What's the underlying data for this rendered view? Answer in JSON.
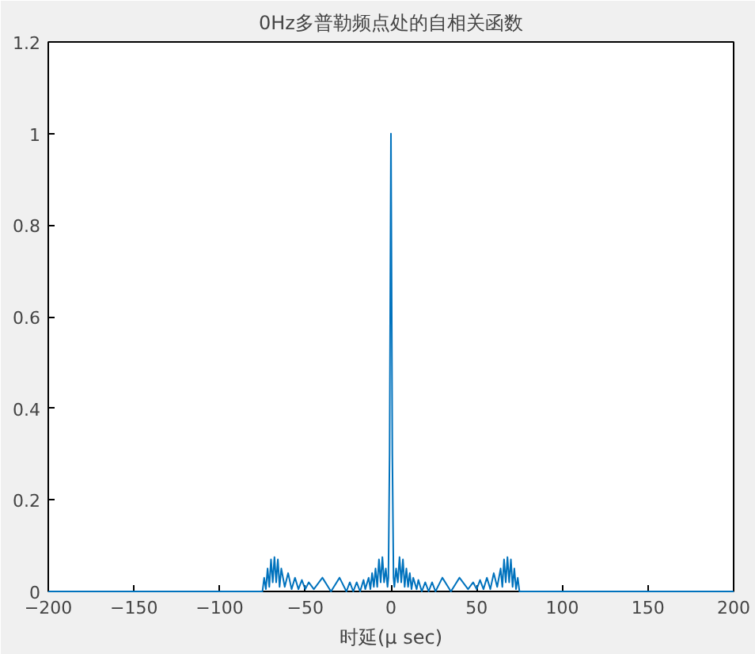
{
  "chart_data": {
    "type": "line",
    "title": "0Hz多普勒频点处的自相关函数",
    "xlabel": "时延(μ sec)",
    "x": [
      -200,
      -75,
      -74,
      -73,
      -72,
      -71,
      -70,
      -69,
      -68,
      -67,
      -66,
      -65,
      -64,
      -62,
      -60,
      -58,
      -56,
      -54,
      -52,
      -50,
      -48,
      -45,
      -40,
      -35,
      -30,
      -26,
      -24,
      -22,
      -20,
      -18,
      -16,
      -15,
      -13,
      -12,
      -11,
      -10,
      -9,
      -8,
      -7,
      -6,
      -5,
      -4,
      -3,
      -2,
      -1.5,
      -0.8,
      0,
      0.8,
      1.5,
      2,
      3,
      4,
      5,
      6,
      7,
      8,
      9,
      10,
      11,
      12,
      13,
      15,
      16,
      18,
      20,
      22,
      24,
      26,
      30,
      35,
      40,
      45,
      48,
      50,
      52,
      54,
      56,
      58,
      60,
      62,
      64,
      65,
      66,
      67,
      68,
      69,
      70,
      71,
      72,
      73,
      74,
      75,
      200
    ],
    "series": [
      {
        "color": "#0072bd",
        "values": [
          0,
          0,
          0.03,
          0.005,
          0.05,
          0.01,
          0.07,
          0.02,
          0.075,
          0.02,
          0.07,
          0.01,
          0.05,
          0.01,
          0.04,
          0.005,
          0.03,
          0.005,
          0.025,
          0.005,
          0.02,
          0.005,
          0.03,
          0,
          0.03,
          0,
          0.02,
          0,
          0.02,
          0,
          0.025,
          0.005,
          0.03,
          0.005,
          0.04,
          0.01,
          0.05,
          0.01,
          0.07,
          0.02,
          0.075,
          0.02,
          0.05,
          0.01,
          0.03,
          0.3,
          1,
          0.3,
          0.03,
          0.01,
          0.05,
          0.02,
          0.075,
          0.02,
          0.07,
          0.01,
          0.05,
          0.01,
          0.04,
          0.005,
          0.03,
          0.005,
          0.025,
          0,
          0.02,
          0,
          0.02,
          0,
          0.03,
          0,
          0.03,
          0.005,
          0.02,
          0.005,
          0.025,
          0.005,
          0.03,
          0.005,
          0.04,
          0.01,
          0.05,
          0.01,
          0.07,
          0.02,
          0.075,
          0.02,
          0.07,
          0.01,
          0.05,
          0.005,
          0.03,
          0,
          0
        ]
      }
    ],
    "xlim": [
      -200,
      200
    ],
    "xticks": [
      -200,
      -150,
      -100,
      -50,
      0,
      50,
      100,
      150,
      200
    ],
    "ylim": [
      0,
      1.2
    ],
    "yticks": [
      0,
      0.2,
      0.4,
      0.6,
      0.8,
      1,
      1.2
    ]
  }
}
